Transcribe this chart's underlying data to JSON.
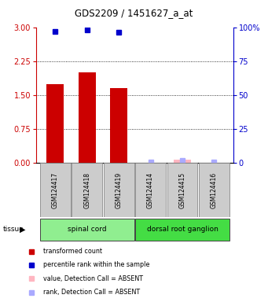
{
  "title": "GDS2209 / 1451627_a_at",
  "samples": [
    "GSM124417",
    "GSM124418",
    "GSM124419",
    "GSM124414",
    "GSM124415",
    "GSM124416"
  ],
  "red_values": [
    1.75,
    2.0,
    1.65,
    0.0,
    0.08,
    0.0
  ],
  "red_absent": [
    false,
    false,
    false,
    true,
    true,
    true
  ],
  "blue_right_vals": [
    97,
    98,
    96,
    1,
    2,
    1
  ],
  "blue_absent": [
    false,
    false,
    false,
    true,
    true,
    true
  ],
  "ylim_left": [
    0,
    3
  ],
  "ylim_right": [
    0,
    100
  ],
  "yticks_left": [
    0,
    0.75,
    1.5,
    2.25,
    3
  ],
  "yticks_right": [
    0,
    25,
    50,
    75,
    100
  ],
  "bar_width": 0.55,
  "red_color": "#CC0000",
  "red_absent_color": "#FFB6C1",
  "blue_color": "#0000CC",
  "blue_absent_color": "#AAAAFF",
  "left_axis_color": "#CC0000",
  "right_axis_color": "#0000CC",
  "tissue_groups": [
    {
      "label": "spinal cord",
      "start": 0,
      "end": 2,
      "color": "#90EE90"
    },
    {
      "label": "dorsal root ganglion",
      "start": 3,
      "end": 5,
      "color": "#44DD44"
    }
  ],
  "legend_items": [
    {
      "color": "#CC0000",
      "label": "transformed count"
    },
    {
      "color": "#0000CC",
      "label": "percentile rank within the sample"
    },
    {
      "color": "#FFB6C1",
      "label": "value, Detection Call = ABSENT"
    },
    {
      "color": "#AAAAFF",
      "label": "rank, Detection Call = ABSENT"
    }
  ]
}
